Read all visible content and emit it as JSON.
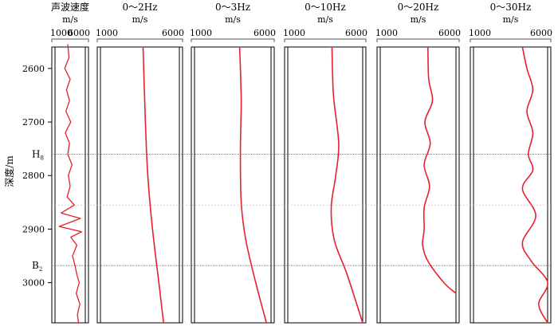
{
  "chart_data": {
    "type": "line",
    "y_axis": {
      "label": "深度/m",
      "ylim": [
        2560,
        3075
      ],
      "ticks": [
        2600,
        2700,
        2800,
        2900,
        3000
      ],
      "tick_labels": [
        "2600",
        "2700",
        "2800",
        "2900",
        "3000"
      ],
      "inverted": true
    },
    "horizons": [
      {
        "label": "H",
        "subscript": "8",
        "depth": 2760
      },
      {
        "label": "B",
        "subscript": "2",
        "depth": 2968
      }
    ],
    "faint_line_depth": 2855,
    "tracks": [
      {
        "title": "声波速度",
        "unit": "m/s",
        "tick_labels": [
          "1000",
          "6000"
        ],
        "xlim": [
          1000,
          6000
        ],
        "color": "#e8202a",
        "style": "log",
        "points": [
          [
            2555,
            3100
          ],
          [
            2580,
            3300
          ],
          [
            2600,
            2600
          ],
          [
            2620,
            3500
          ],
          [
            2640,
            2900
          ],
          [
            2660,
            3400
          ],
          [
            2680,
            2800
          ],
          [
            2700,
            3600
          ],
          [
            2720,
            2700
          ],
          [
            2740,
            3400
          ],
          [
            2760,
            3100
          ],
          [
            2780,
            3800
          ],
          [
            2800,
            3200
          ],
          [
            2820,
            3500
          ],
          [
            2840,
            3000
          ],
          [
            2855,
            4200
          ],
          [
            2870,
            2000
          ],
          [
            2880,
            5200
          ],
          [
            2895,
            1700
          ],
          [
            2905,
            5400
          ],
          [
            2915,
            3600
          ],
          [
            2930,
            4600
          ],
          [
            2950,
            3900
          ],
          [
            2968,
            4300
          ],
          [
            2985,
            4600
          ],
          [
            3000,
            5000
          ],
          [
            3020,
            4500
          ],
          [
            3040,
            5100
          ],
          [
            3060,
            4700
          ],
          [
            3075,
            4900
          ]
        ]
      },
      {
        "title": "0～2Hz",
        "unit": "m/s",
        "tick_labels": [
          "1000",
          "6000"
        ],
        "xlim": [
          1000,
          6000
        ],
        "color": "#e8202a",
        "style": "smooth",
        "points": [
          [
            2560,
            3700
          ],
          [
            2700,
            3850
          ],
          [
            2800,
            4000
          ],
          [
            2900,
            4300
          ],
          [
            3000,
            4700
          ],
          [
            3075,
            5000
          ]
        ]
      },
      {
        "title": "0～3Hz",
        "unit": "m/s",
        "tick_labels": [
          "1000",
          "6000"
        ],
        "xlim": [
          1000,
          6000
        ],
        "color": "#e8202a",
        "style": "smooth",
        "points": [
          [
            2560,
            3950
          ],
          [
            2660,
            4050
          ],
          [
            2750,
            4000
          ],
          [
            2850,
            4050
          ],
          [
            2920,
            4350
          ],
          [
            3000,
            5000
          ],
          [
            3075,
            5700
          ]
        ]
      },
      {
        "title": "0～10Hz",
        "unit": "m/s",
        "tick_labels": [
          "1000",
          "6000"
        ],
        "xlim": [
          1000,
          6000
        ],
        "color": "#e8202a",
        "style": "smooth",
        "points": [
          [
            2560,
            3950
          ],
          [
            2650,
            4050
          ],
          [
            2740,
            4400
          ],
          [
            2800,
            4200
          ],
          [
            2860,
            3900
          ],
          [
            2920,
            4100
          ],
          [
            2980,
            4900
          ],
          [
            3040,
            5600
          ],
          [
            3075,
            6000
          ]
        ]
      },
      {
        "title": "0～20Hz",
        "unit": "m/s",
        "tick_labels": [
          "1000",
          "6000"
        ],
        "xlim": [
          1000,
          6000
        ],
        "color": "#e8202a",
        "style": "smooth",
        "points": [
          [
            2560,
            4150
          ],
          [
            2620,
            4200
          ],
          [
            2660,
            4450
          ],
          [
            2700,
            3950
          ],
          [
            2740,
            4300
          ],
          [
            2780,
            3900
          ],
          [
            2820,
            4250
          ],
          [
            2860,
            3900
          ],
          [
            2900,
            3900
          ],
          [
            2930,
            3800
          ],
          [
            2960,
            4150
          ],
          [
            3000,
            5200
          ],
          [
            3020,
            6000
          ]
        ]
      },
      {
        "title": "0～30Hz",
        "unit": "m/s",
        "tick_labels": [
          "1000",
          "6000"
        ],
        "xlim": [
          1000,
          6000
        ],
        "color": "#e8202a",
        "style": "smooth",
        "points": [
          [
            2560,
            4300
          ],
          [
            2600,
            4600
          ],
          [
            2640,
            5000
          ],
          [
            2680,
            4600
          ],
          [
            2720,
            5000
          ],
          [
            2760,
            4700
          ],
          [
            2790,
            5000
          ],
          [
            2825,
            4300
          ],
          [
            2875,
            5200
          ],
          [
            2925,
            4300
          ],
          [
            2960,
            4900
          ],
          [
            3000,
            6000
          ],
          [
            3040,
            5400
          ],
          [
            3075,
            6000
          ]
        ]
      }
    ]
  }
}
